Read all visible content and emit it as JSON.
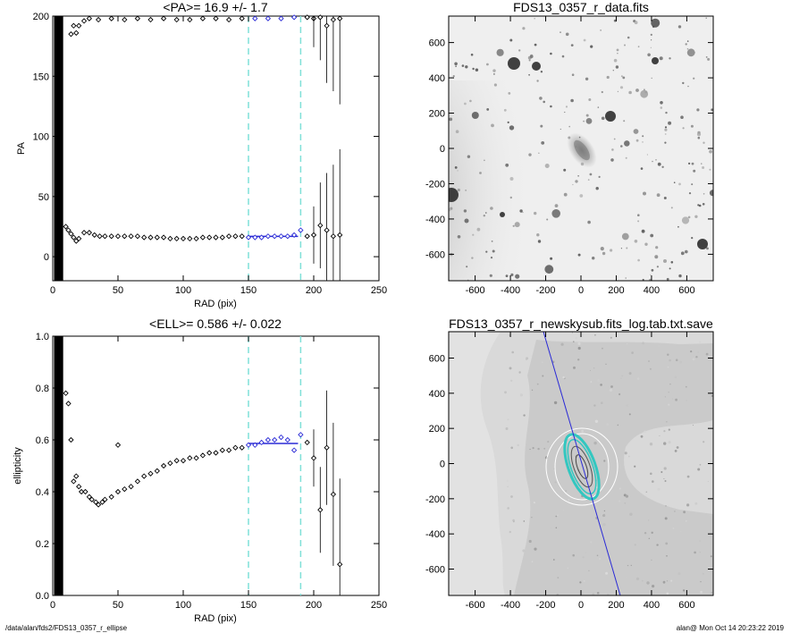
{
  "footer": {
    "left": "/data/alan/fds2/FDS13_0357_r_ellipse",
    "right": "alan@  Mon Oct 14 20:23:22 2019"
  },
  "colors": {
    "points": "#000000",
    "fit": "#2a2ad6",
    "window": "#7fe0d8",
    "contour": "#33c7c0",
    "mask": "#dcdcdc"
  },
  "chart_data": [
    {
      "type": "scatter",
      "title": "<PA>=  16.9 +/-   1.7",
      "xlabel": "RAD (pix)",
      "ylabel": "PA",
      "xlim": [
        0,
        250
      ],
      "ylim": [
        -20,
        200
      ],
      "xticks": [
        "0",
        "50",
        "100",
        "150",
        "200",
        "250"
      ],
      "yticks": [
        "0",
        "50",
        "100",
        "150",
        "200"
      ],
      "fit_window": [
        150,
        190
      ],
      "mean_value": 16.9,
      "series": [
        {
          "x": [
            10,
            12,
            14,
            16,
            18,
            20,
            24,
            28,
            32,
            36,
            40,
            45,
            50,
            55,
            60,
            65,
            70,
            75,
            80,
            85,
            90,
            95,
            100,
            105,
            110,
            115,
            120,
            125,
            130,
            135,
            140,
            145,
            150,
            155,
            160,
            165,
            170,
            175,
            180,
            185,
            190,
            195,
            200,
            205,
            210,
            215,
            220
          ],
          "y": [
            25,
            22,
            19,
            16,
            13,
            15,
            20,
            20,
            18,
            17,
            17,
            17,
            17,
            17,
            17,
            17,
            16,
            16,
            16,
            16,
            15,
            15,
            15,
            15,
            15,
            16,
            16,
            16,
            16,
            17,
            17,
            17,
            16,
            16,
            16,
            17,
            17,
            17,
            17,
            18,
            22,
            17,
            18,
            26,
            22,
            17,
            18
          ]
        },
        {
          "x": [
            14,
            16,
            18,
            20,
            24,
            28,
            35,
            45,
            55,
            65,
            75,
            85,
            95,
            105,
            115,
            125,
            135,
            145,
            155,
            165,
            175,
            185,
            195,
            200,
            205,
            210,
            215,
            220
          ],
          "y": [
            185,
            192,
            186,
            192,
            196,
            198,
            197,
            198,
            197,
            198,
            197,
            198,
            197,
            197,
            198,
            198,
            197,
            198,
            198,
            198,
            198,
            199,
            199,
            198,
            199,
            192,
            197,
            198
          ]
        }
      ]
    },
    {
      "type": "image",
      "title": "FDS13_0357_r_data.fits",
      "xlim": [
        -750,
        750
      ],
      "ylim": [
        -750,
        750
      ],
      "xticks": [
        "-600",
        "-400",
        "-200",
        "0",
        "200",
        "400",
        "600"
      ],
      "yticks": [
        "-600",
        "-400",
        "-200",
        "0",
        "200",
        "400",
        "600"
      ]
    },
    {
      "type": "scatter",
      "title": "<ELL>= 0.586 +/-  0.022",
      "xlabel": "RAD (pix)",
      "ylabel": "ellipticity",
      "xlim": [
        0,
        250
      ],
      "ylim": [
        0,
        1
      ],
      "xticks": [
        "0",
        "50",
        "100",
        "150",
        "200",
        "250"
      ],
      "yticks": [
        "0.0",
        "0.2",
        "0.4",
        "0.6",
        "0.8",
        "1.0"
      ],
      "fit_window": [
        150,
        190
      ],
      "mean_value": 0.586,
      "series": [
        {
          "x": [
            10,
            12,
            14,
            16,
            18,
            20,
            22,
            25,
            28,
            30,
            33,
            35,
            38,
            40,
            45,
            50,
            55,
            60,
            65,
            70,
            75,
            80,
            85,
            90,
            95,
            100,
            105,
            110,
            115,
            120,
            125,
            130,
            135,
            140,
            145,
            150,
            155,
            160,
            165,
            170,
            175,
            180,
            185,
            190,
            195,
            200,
            205,
            210,
            215,
            220
          ],
          "y": [
            0.78,
            0.74,
            0.6,
            0.44,
            0.46,
            0.42,
            0.4,
            0.4,
            0.38,
            0.37,
            0.36,
            0.35,
            0.36,
            0.37,
            0.38,
            0.4,
            0.41,
            0.42,
            0.44,
            0.46,
            0.47,
            0.48,
            0.5,
            0.51,
            0.52,
            0.52,
            0.53,
            0.53,
            0.54,
            0.55,
            0.55,
            0.56,
            0.56,
            0.57,
            0.57,
            0.58,
            0.58,
            0.59,
            0.6,
            0.6,
            0.61,
            0.6,
            0.56,
            0.62,
            0.59,
            0.53,
            0.33,
            0.57,
            0.39,
            0.12
          ]
        },
        {
          "x": [
            50
          ],
          "y": [
            0.58
          ]
        }
      ]
    },
    {
      "type": "image",
      "title": "FDS13_0357_r_newskysub.fits_log.tab.txt.save",
      "xlim": [
        -750,
        750
      ],
      "ylim": [
        -750,
        750
      ],
      "xticks": [
        "-600",
        "-400",
        "-200",
        "0",
        "200",
        "400",
        "600"
      ],
      "yticks": [
        "-600",
        "-400",
        "-200",
        "0",
        "200",
        "400",
        "600"
      ]
    }
  ]
}
